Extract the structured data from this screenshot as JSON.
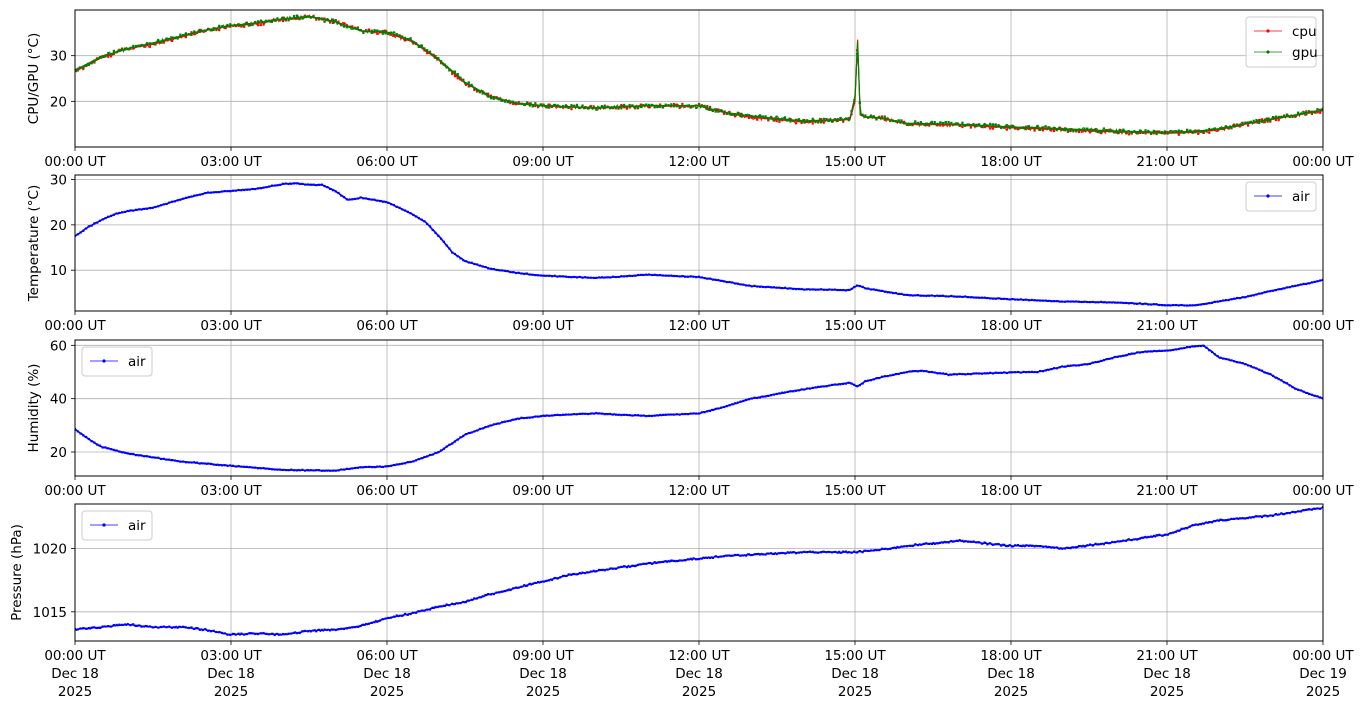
{
  "chart_data": [
    {
      "type": "line",
      "ylabel": "CPU/GPU (°C)",
      "xlim": [
        0,
        24
      ],
      "ylim": [
        10,
        40
      ],
      "yticks": [
        20,
        30
      ],
      "grid": true,
      "legend_position": "top-right",
      "series": [
        {
          "name": "cpu",
          "color": "#ff0000",
          "marker_color": "#ff0000",
          "x": [
            0,
            0.5,
            1,
            1.5,
            2,
            2.5,
            3,
            3.5,
            4,
            4.5,
            5,
            5.5,
            6,
            6.5,
            7,
            7.5,
            8,
            8.5,
            9,
            10,
            11,
            12,
            12.5,
            13,
            14,
            14.9,
            15.0,
            15.05,
            15.1,
            15.2,
            15.5,
            16,
            17,
            18,
            19,
            20,
            21,
            21.5,
            22,
            22.5,
            23,
            23.5,
            24
          ],
          "y": [
            26.5,
            29.5,
            31.5,
            32.5,
            34,
            35.5,
            36.5,
            37,
            38,
            38.5,
            37.5,
            35.5,
            35,
            33,
            29,
            24,
            21,
            19.5,
            19,
            18.5,
            19,
            19,
            17.5,
            16.5,
            15.5,
            16,
            20,
            33.5,
            17,
            16.5,
            16.3,
            15,
            14.8,
            14.2,
            13.8,
            13.3,
            13,
            13.2,
            13.8,
            15,
            16,
            17,
            18
          ]
        },
        {
          "name": "gpu",
          "color": "#008000",
          "marker_color": "#008000",
          "x": [
            0,
            0.5,
            1,
            1.5,
            2,
            2.5,
            3,
            3.5,
            4,
            4.5,
            5,
            5.5,
            6,
            6.5,
            7,
            7.5,
            8,
            8.5,
            9,
            10,
            11,
            12,
            12.5,
            13,
            14,
            14.9,
            15.0,
            15.05,
            15.1,
            15.2,
            15.5,
            16,
            17,
            18,
            19,
            20,
            21,
            21.5,
            22,
            22.5,
            23,
            23.5,
            24
          ],
          "y": [
            26.8,
            29.8,
            31.5,
            32.8,
            34.2,
            35.6,
            36.6,
            37.2,
            38.1,
            38.6,
            37.4,
            35.4,
            35.2,
            33.2,
            29.2,
            24.2,
            21,
            19.6,
            19.1,
            18.6,
            19.1,
            19,
            17.6,
            16.8,
            15.7,
            16.1,
            21,
            33,
            17.2,
            16.6,
            16.4,
            15.2,
            15,
            14.4,
            14,
            13.5,
            13.2,
            13.4,
            14,
            15.1,
            16.1,
            17.1,
            18.1
          ]
        }
      ]
    },
    {
      "type": "line",
      "ylabel": "Temperature (°C)",
      "xlim": [
        0,
        24
      ],
      "ylim": [
        1,
        31
      ],
      "yticks": [
        10,
        20,
        30
      ],
      "grid": true,
      "legend_position": "top-right",
      "series": [
        {
          "name": "air",
          "color": "#0000ff",
          "marker_color": "#0000ff",
          "x": [
            0,
            0.25,
            0.5,
            0.75,
            1,
            1.5,
            2,
            2.5,
            3,
            3.5,
            4,
            4.25,
            4.5,
            4.75,
            5,
            5.25,
            5.5,
            6,
            6.5,
            6.75,
            7,
            7.25,
            7.5,
            8,
            8.5,
            9,
            10,
            10.5,
            11,
            12,
            12.5,
            13,
            14,
            14.9,
            15.05,
            15.2,
            16,
            17,
            18,
            19,
            20,
            21,
            21.5,
            22,
            22.5,
            23,
            23.5,
            24
          ],
          "y": [
            17.5,
            19.5,
            21,
            22.3,
            23,
            23.8,
            25.5,
            27,
            27.5,
            28,
            29,
            29.2,
            28.8,
            28.8,
            27.5,
            25.5,
            26,
            25,
            22.3,
            20.5,
            17.5,
            14,
            12,
            10.3,
            9.4,
            8.8,
            8.3,
            8.6,
            9,
            8.5,
            7.5,
            6.5,
            5.8,
            5.6,
            6.7,
            6,
            4.5,
            4.2,
            3.6,
            3.1,
            2.9,
            2.3,
            2.2,
            3.1,
            4.1,
            5.4,
            6.6,
            7.8
          ]
        }
      ]
    },
    {
      "type": "line",
      "ylabel": "Humidity (%)",
      "xlim": [
        0,
        24
      ],
      "ylim": [
        11,
        62
      ],
      "yticks": [
        20,
        40,
        60
      ],
      "grid": true,
      "legend_position": "top-left",
      "series": [
        {
          "name": "air",
          "color": "#0000ff",
          "marker_color": "#0000ff",
          "x": [
            0,
            0.25,
            0.5,
            1,
            1.5,
            2,
            3,
            4,
            5,
            5.5,
            6,
            6.5,
            7,
            7.5,
            8,
            8.5,
            9,
            10,
            11,
            12,
            12.5,
            13,
            14,
            14.9,
            15.05,
            15.2,
            15.5,
            16,
            16.3,
            16.8,
            17.5,
            18,
            18.5,
            19,
            19.5,
            20,
            20.5,
            21,
            21.5,
            21.7,
            22,
            22.5,
            23,
            23.5,
            24
          ],
          "y": [
            28.5,
            25,
            22,
            19.5,
            18,
            16.5,
            14.8,
            13.3,
            13,
            14.3,
            14.5,
            16.5,
            20,
            26.5,
            30,
            32.5,
            33.5,
            34.5,
            33.5,
            34.5,
            37,
            40,
            43.5,
            46,
            44.5,
            46.5,
            48,
            50,
            50.5,
            49,
            49.5,
            49.8,
            50,
            52,
            53,
            55.5,
            57.5,
            58,
            59.5,
            60,
            55.5,
            53,
            49,
            43.5,
            40
          ]
        }
      ]
    },
    {
      "type": "line",
      "ylabel": "Pressure (hPa)",
      "xlim": [
        0,
        24
      ],
      "ylim": [
        1012.7,
        1023.5
      ],
      "yticks": [
        1015,
        1020
      ],
      "grid": true,
      "legend_position": "top-left",
      "xlabels": [
        {
          "time": "00:00 UT",
          "date": "Dec 18",
          "year": "2025"
        },
        {
          "time": "03:00 UT",
          "date": "Dec 18",
          "year": "2025"
        },
        {
          "time": "06:00 UT",
          "date": "Dec 18",
          "year": "2025"
        },
        {
          "time": "09:00 UT",
          "date": "Dec 18",
          "year": "2025"
        },
        {
          "time": "12:00 UT",
          "date": "Dec 18",
          "year": "2025"
        },
        {
          "time": "15:00 UT",
          "date": "Dec 18",
          "year": "2025"
        },
        {
          "time": "18:00 UT",
          "date": "Dec 18",
          "year": "2025"
        },
        {
          "time": "21:00 UT",
          "date": "Dec 18",
          "year": "2025"
        },
        {
          "time": "00:00 UT",
          "date": "Dec 19",
          "year": "2025"
        }
      ],
      "series": [
        {
          "name": "air",
          "color": "#0000ff",
          "marker_color": "#0000ff",
          "x": [
            0,
            0.5,
            1,
            1.5,
            2,
            2.5,
            3,
            3.5,
            4,
            4.5,
            5,
            5.5,
            6,
            6.5,
            7,
            7.5,
            8,
            8.5,
            9,
            9.5,
            10,
            10.5,
            11,
            12,
            12.5,
            13,
            14,
            15,
            15.5,
            16,
            17,
            18,
            18.5,
            19,
            20,
            20.5,
            21,
            21.5,
            22,
            22.5,
            23,
            23.5,
            24
          ],
          "y": [
            1013.6,
            1013.8,
            1014,
            1013.8,
            1013.8,
            1013.6,
            1013.2,
            1013.3,
            1013.2,
            1013.5,
            1013.6,
            1013.9,
            1014.5,
            1014.9,
            1015.4,
            1015.8,
            1016.4,
            1016.9,
            1017.4,
            1017.9,
            1018.2,
            1018.5,
            1018.8,
            1019.2,
            1019.4,
            1019.5,
            1019.7,
            1019.7,
            1019.9,
            1020.2,
            1020.6,
            1020.2,
            1020.2,
            1020.0,
            1020.5,
            1020.8,
            1021.1,
            1021.8,
            1022.2,
            1022.4,
            1022.6,
            1022.9,
            1023.2
          ]
        }
      ]
    }
  ],
  "xtick_values": [
    0,
    3,
    6,
    9,
    12,
    15,
    18,
    21,
    24
  ],
  "xtick_labels": [
    "00:00 UT",
    "03:00 UT",
    "06:00 UT",
    "09:00 UT",
    "12:00 UT",
    "15:00 UT",
    "18:00 UT",
    "21:00 UT",
    "00:00 UT"
  ],
  "colors": {
    "grid": "#b0b0b0",
    "axes": "#000000",
    "legend_border": "#cccccc"
  }
}
